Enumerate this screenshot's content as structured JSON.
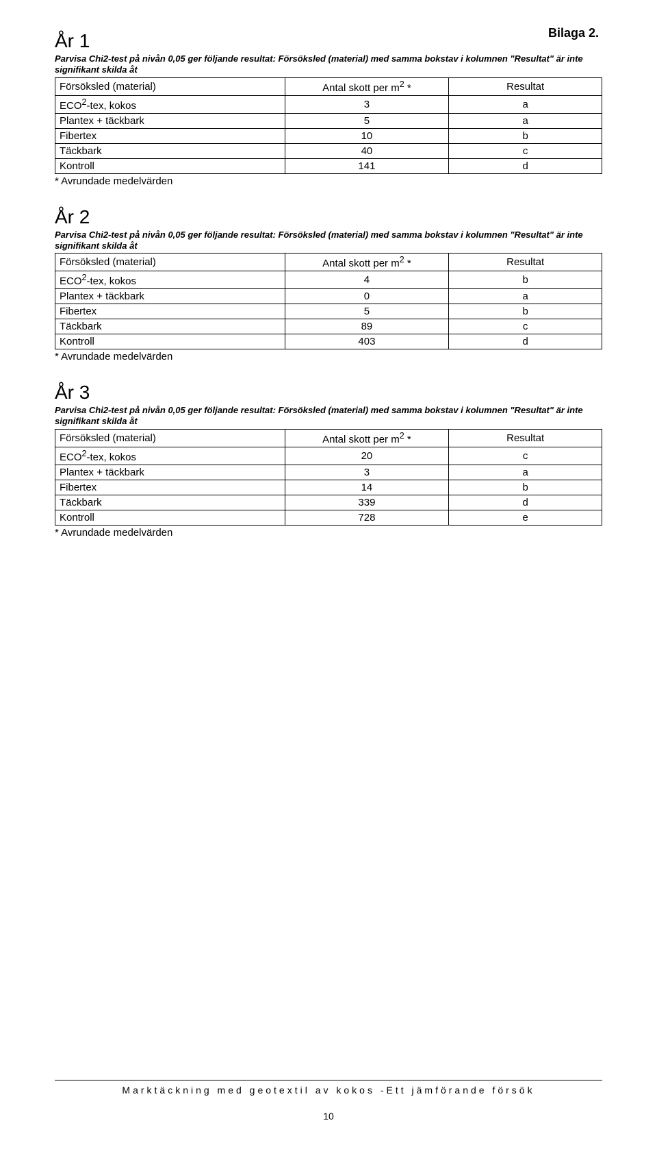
{
  "bilaga_label": "Bilaga 2.",
  "footnote_text": "* Avrundade medelvärden",
  "header": {
    "col1": "Försöksled (material)",
    "col2_prefix": "Antal skott per m",
    "col2_sup": "2",
    "col2_suffix": " *",
    "col3": "Resultat"
  },
  "sections": [
    {
      "heading": "År 1",
      "desc": "Parvisa Chi2-test på nivån 0,05 ger följande resultat: Försöksled (material) med samma bokstav i kolumnen \"Resultat\" är inte signifikant skilda åt",
      "rows": [
        {
          "m_prefix": "ECO",
          "m_sup": "2",
          "m_suffix": "-tex, kokos",
          "v": "3",
          "r": "a"
        },
        {
          "m": "Plantex + täckbark",
          "v": "5",
          "r": "a"
        },
        {
          "m": "Fibertex",
          "v": "10",
          "r": "b"
        },
        {
          "m": "Täckbark",
          "v": "40",
          "r": "c"
        },
        {
          "m": "Kontroll",
          "v": "141",
          "r": "d"
        }
      ]
    },
    {
      "heading": "År 2",
      "desc": "Parvisa Chi2-test på nivån 0,05 ger följande resultat: Försöksled (material) med samma bokstav i kolumnen \"Resultat\" är inte signifikant skilda åt",
      "rows": [
        {
          "m_prefix": "ECO",
          "m_sup": "2",
          "m_suffix": "-tex, kokos",
          "v": "4",
          "r": "b"
        },
        {
          "m": "Plantex + täckbark",
          "v": "0",
          "r": "a"
        },
        {
          "m": "Fibertex",
          "v": "5",
          "r": "b"
        },
        {
          "m": "Täckbark",
          "v": "89",
          "r": "c"
        },
        {
          "m": "Kontroll",
          "v": "403",
          "r": "d"
        }
      ]
    },
    {
      "heading": "År 3",
      "desc": "Parvisa Chi2-test på nivån 0,05 ger följande resultat: Försöksled (material) med samma bokstav i kolumnen \"Resultat\" är inte signifikant skilda åt",
      "rows": [
        {
          "m_prefix": "ECO",
          "m_sup": "2",
          "m_suffix": "-tex, kokos",
          "v": "20",
          "r": "c"
        },
        {
          "m": "Plantex + täckbark",
          "v": "3",
          "r": "a"
        },
        {
          "m": "Fibertex",
          "v": "14",
          "r": "b"
        },
        {
          "m": "Täckbark",
          "v": "339",
          "r": "d"
        },
        {
          "m": "Kontroll",
          "v": "728",
          "r": "e"
        }
      ]
    }
  ],
  "footer_text": "Marktäckning med geotextil av kokos -Ett jämförande försök",
  "page_number": "10",
  "colors": {
    "text": "#000000",
    "background": "#ffffff",
    "border": "#000000"
  },
  "fonts": {
    "body_family": "Arial",
    "heading_size_pt": 21,
    "body_size_pt": 11,
    "desc_size_pt": 10
  }
}
